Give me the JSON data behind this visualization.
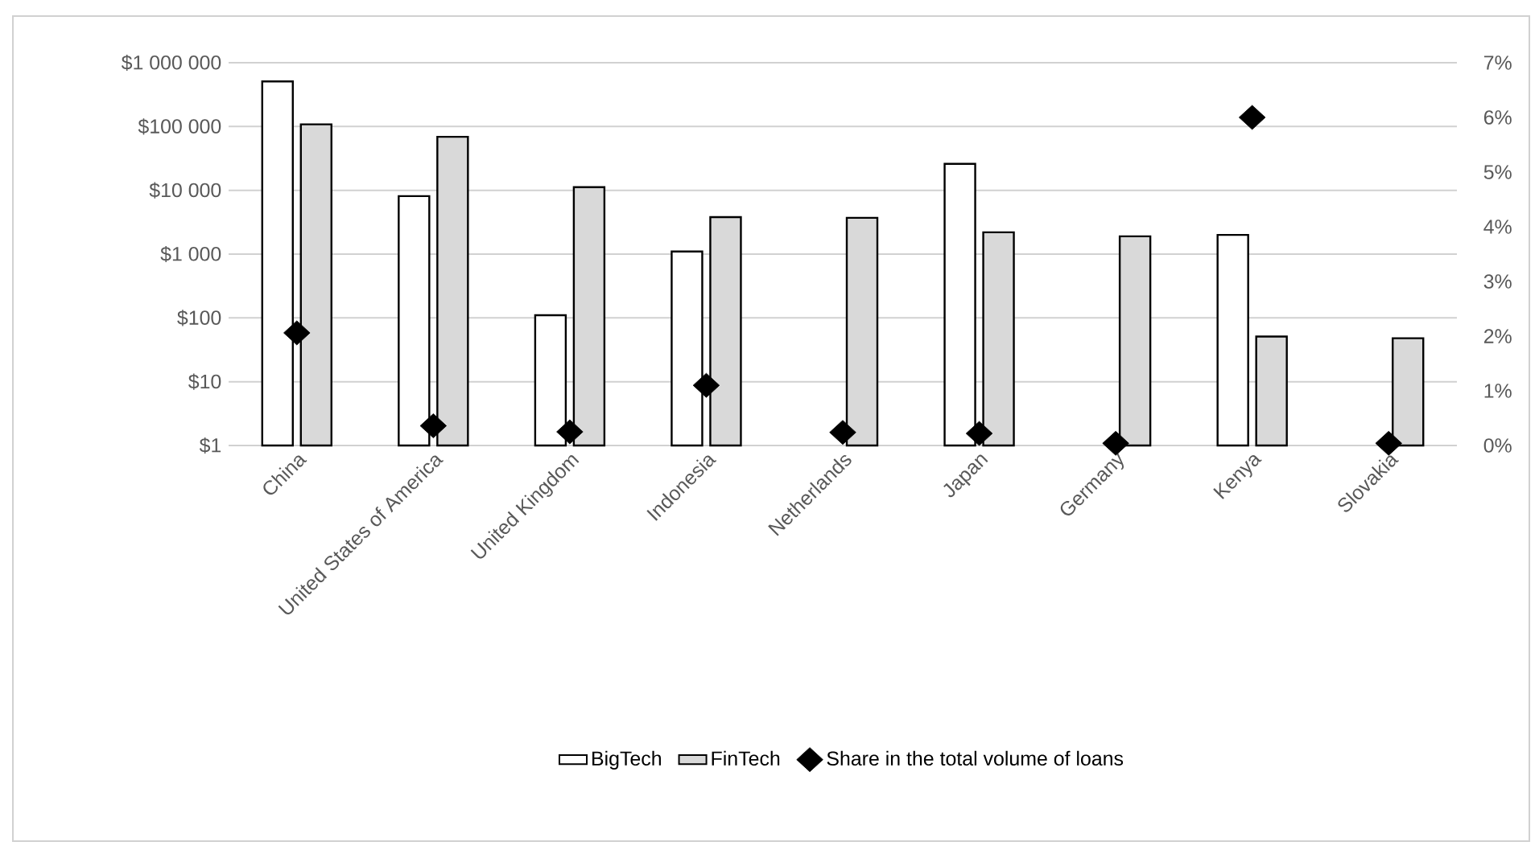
{
  "chart_data": {
    "type": "bar",
    "log": "y",
    "grid": "y",
    "legend": "bottom",
    "categories": [
      "China",
      "United States of America",
      "United Kingdom",
      "Indonesia",
      "Netherlands",
      "Japan",
      "Germany",
      "Kenya",
      "Slovakia"
    ],
    "series": [
      {
        "name": "BigTech",
        "color": "#ffffff",
        "values": [
          510000,
          8100,
          110,
          1100,
          null,
          26000,
          null,
          2000,
          null
        ]
      },
      {
        "name": "FinTech",
        "color": "#d9d9d9",
        "values": [
          108000,
          69000,
          11200,
          3800,
          3700,
          2200,
          1900,
          51,
          48
        ]
      },
      {
        "name": "Share in the total volume of loans",
        "type": "scatter",
        "axis": "y2",
        "marker": "diamond",
        "color": "#000000",
        "values": [
          2.06,
          0.36,
          0.25,
          1.1,
          0.24,
          0.22,
          0.04,
          6.0,
          0.04
        ]
      }
    ],
    "ylim": [
      1,
      1000000
    ],
    "yticks": [
      {
        "value": 1,
        "label": "$1"
      },
      {
        "value": 10,
        "label": "$10"
      },
      {
        "value": 100,
        "label": "$100"
      },
      {
        "value": 1000,
        "label": "$1 000"
      },
      {
        "value": 10000,
        "label": "$10 000"
      },
      {
        "value": 100000,
        "label": "$100 000"
      },
      {
        "value": 1000000,
        "label": "$1 000 000"
      }
    ],
    "y2lim": [
      0,
      7
    ],
    "y2ticks": [
      {
        "value": 0,
        "label": "0%"
      },
      {
        "value": 1,
        "label": "1%"
      },
      {
        "value": 2,
        "label": "2%"
      },
      {
        "value": 3,
        "label": "3%"
      },
      {
        "value": 4,
        "label": "4%"
      },
      {
        "value": 5,
        "label": "5%"
      },
      {
        "value": 6,
        "label": "6%"
      },
      {
        "value": 7,
        "label": "7%"
      }
    ]
  }
}
